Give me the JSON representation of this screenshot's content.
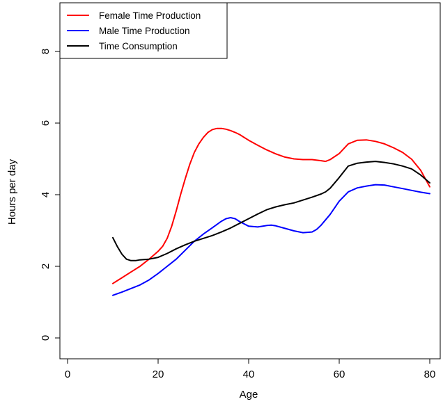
{
  "chart_data": {
    "type": "line",
    "xlabel": "Age",
    "ylabel": "Hours per day",
    "xlim": [
      0,
      80
    ],
    "ylim": [
      0,
      9.3
    ],
    "xticks": [
      0,
      20,
      40,
      60,
      80
    ],
    "yticks": [
      0,
      2,
      4,
      6,
      8
    ],
    "grid": false,
    "legend_position": "top-left",
    "series": [
      {
        "name": "Female Time Production",
        "color": "#ff0000",
        "x": [
          10,
          12,
          14,
          16,
          18,
          20,
          21,
          22,
          23,
          24,
          25,
          26,
          27,
          28,
          29,
          30,
          31,
          32,
          33,
          34,
          35,
          36,
          37,
          38,
          39,
          40,
          42,
          44,
          46,
          48,
          50,
          52,
          54,
          56,
          57,
          58,
          60,
          62,
          64,
          66,
          68,
          70,
          72,
          74,
          76,
          78,
          80
        ],
        "y": [
          1.52,
          1.68,
          1.84,
          2.0,
          2.2,
          2.42,
          2.56,
          2.78,
          3.12,
          3.55,
          4.02,
          4.45,
          4.85,
          5.18,
          5.42,
          5.6,
          5.74,
          5.82,
          5.85,
          5.85,
          5.83,
          5.79,
          5.74,
          5.68,
          5.6,
          5.52,
          5.38,
          5.25,
          5.14,
          5.05,
          5.0,
          4.98,
          4.98,
          4.95,
          4.93,
          4.98,
          5.15,
          5.42,
          5.52,
          5.53,
          5.49,
          5.42,
          5.31,
          5.18,
          4.99,
          4.68,
          4.22
        ]
      },
      {
        "name": "Male Time Production",
        "color": "#0000ff",
        "x": [
          10,
          12,
          14,
          16,
          18,
          20,
          22,
          24,
          26,
          28,
          30,
          32,
          34,
          35,
          36,
          37,
          38,
          40,
          42,
          44,
          45,
          46,
          48,
          50,
          52,
          54,
          55,
          56,
          58,
          60,
          62,
          64,
          66,
          68,
          70,
          72,
          74,
          76,
          78,
          80
        ],
        "y": [
          1.19,
          1.28,
          1.38,
          1.48,
          1.62,
          1.8,
          2.0,
          2.2,
          2.45,
          2.7,
          2.9,
          3.08,
          3.26,
          3.33,
          3.36,
          3.33,
          3.25,
          3.12,
          3.1,
          3.14,
          3.15,
          3.13,
          3.06,
          2.99,
          2.94,
          2.96,
          3.03,
          3.15,
          3.45,
          3.82,
          4.08,
          4.19,
          4.24,
          4.28,
          4.27,
          4.22,
          4.17,
          4.12,
          4.07,
          4.03
        ]
      },
      {
        "name": "Time Consumption",
        "color": "#000000",
        "x": [
          10,
          11,
          12,
          13,
          14,
          15,
          16,
          18,
          20,
          22,
          24,
          26,
          28,
          30,
          32,
          34,
          36,
          38,
          40,
          42,
          44,
          46,
          48,
          50,
          52,
          54,
          56,
          57,
          58,
          60,
          62,
          64,
          66,
          68,
          70,
          72,
          74,
          76,
          78,
          80
        ],
        "y": [
          2.8,
          2.55,
          2.34,
          2.2,
          2.16,
          2.16,
          2.18,
          2.2,
          2.25,
          2.36,
          2.49,
          2.6,
          2.7,
          2.78,
          2.86,
          2.96,
          3.07,
          3.2,
          3.33,
          3.46,
          3.58,
          3.66,
          3.72,
          3.77,
          3.85,
          3.93,
          4.02,
          4.08,
          4.18,
          4.48,
          4.8,
          4.88,
          4.91,
          4.93,
          4.9,
          4.86,
          4.8,
          4.72,
          4.55,
          4.33
        ]
      }
    ]
  }
}
